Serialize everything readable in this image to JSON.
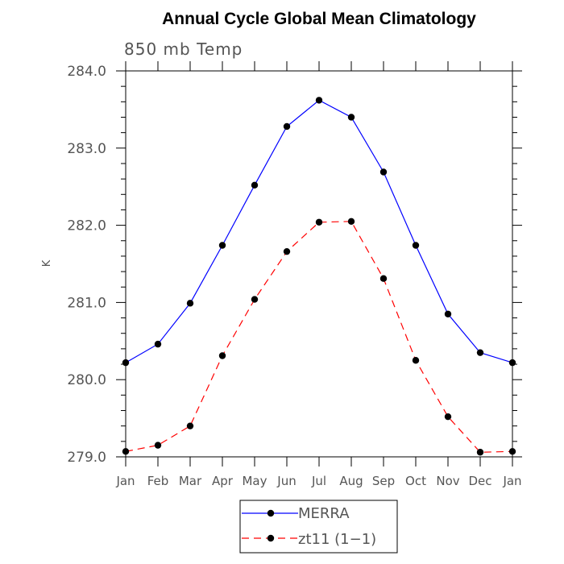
{
  "chart_data": {
    "type": "line",
    "title": "Annual Cycle Global Mean Climatology",
    "subtitle": "850 mb Temp",
    "ylabel": "K",
    "xlabel": "",
    "categories": [
      "Jan",
      "Feb",
      "Mar",
      "Apr",
      "May",
      "Jun",
      "Jul",
      "Aug",
      "Sep",
      "Oct",
      "Nov",
      "Dec",
      "Jan"
    ],
    "ylim": [
      279.0,
      284.0
    ],
    "yticks": [
      "279.0",
      "280.0",
      "281.0",
      "282.0",
      "283.0",
      "284.0"
    ],
    "grid": false,
    "legend_position": "bottom-center",
    "series": [
      {
        "name": "MERRA",
        "color": "#0000ff",
        "line_style": "solid",
        "marker": "filled-circle",
        "values": [
          280.22,
          280.46,
          280.99,
          281.74,
          282.52,
          283.28,
          283.62,
          283.4,
          282.69,
          281.74,
          280.85,
          280.35,
          280.22
        ]
      },
      {
        "name": "zt11 (1−1)",
        "color": "#ff0000",
        "line_style": "dashed",
        "marker": "filled-circle",
        "values": [
          279.07,
          279.15,
          279.4,
          280.31,
          281.04,
          281.66,
          282.04,
          282.05,
          281.31,
          280.25,
          279.52,
          279.06,
          279.07
        ]
      }
    ]
  }
}
